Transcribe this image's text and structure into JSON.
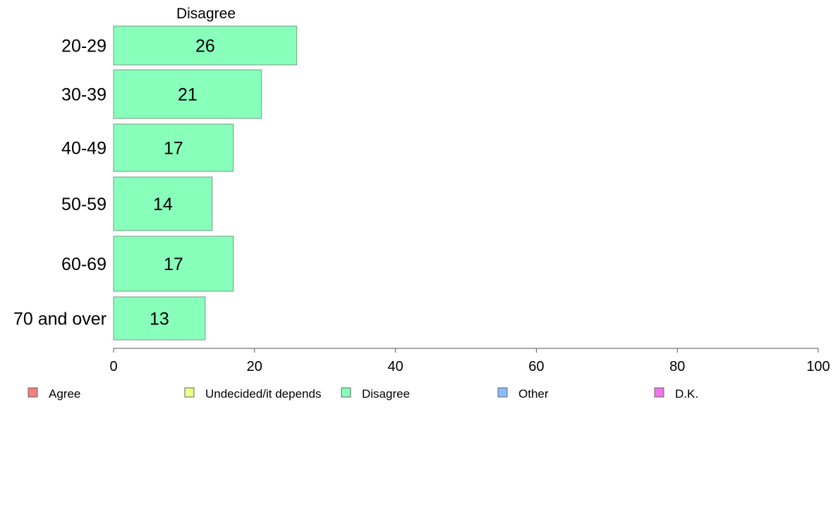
{
  "chart_data": {
    "type": "bar",
    "orientation": "horizontal",
    "header": "Disagree",
    "categories": [
      "20-29",
      "30-39",
      "40-49",
      "50-59",
      "60-69",
      "70 and over"
    ],
    "series": [
      {
        "name": "Disagree",
        "values": [
          26,
          21,
          17,
          14,
          17,
          13
        ]
      }
    ],
    "value_labels": [
      "26",
      "21",
      "17",
      "14",
      "17",
      "13"
    ],
    "xlim": [
      0,
      100
    ],
    "xticks": [
      0,
      20,
      40,
      60,
      80,
      100
    ],
    "grid": false,
    "bar_color": "#88ffbb",
    "legend_position": "bottom",
    "legend": [
      {
        "label": "Agree",
        "color": "#f08080"
      },
      {
        "label": "Undecided/it depends",
        "color": "#eeff88"
      },
      {
        "label": "Disagree",
        "color": "#88ffbb"
      },
      {
        "label": "Other",
        "color": "#88bbff"
      },
      {
        "label": "D.K.",
        "color": "#ee77ee"
      }
    ]
  }
}
